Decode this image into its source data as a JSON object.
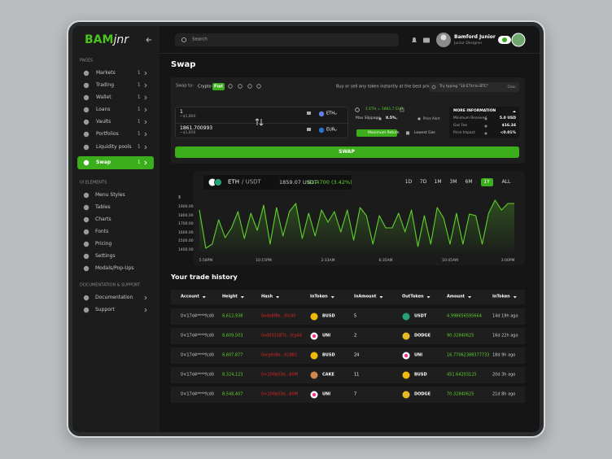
{
  "sidebar": {
    "logo_bold": "BAM",
    "logo_italic": "jnr",
    "sections": [
      {
        "title": "PAGES",
        "items": [
          {
            "label": "Markets",
            "count": 1
          },
          {
            "label": "Trading",
            "count": 1
          },
          {
            "label": "Wallet",
            "count": 1
          },
          {
            "label": "Loans",
            "count": 1
          },
          {
            "label": "Vaults",
            "count": 1
          },
          {
            "label": "Portfolios",
            "count": 1
          },
          {
            "label": "Liquidity pools",
            "count": 1
          },
          {
            "label": "Swap",
            "count": 1,
            "active": true
          }
        ]
      },
      {
        "title": "UI ELEMENTS",
        "items": [
          {
            "label": "Menu Styles"
          },
          {
            "label": "Tables"
          },
          {
            "label": "Charts"
          },
          {
            "label": "Fonts"
          },
          {
            "label": "Pricing"
          },
          {
            "label": "Settings"
          },
          {
            "label": "Modals/Pop-Ups"
          }
        ]
      },
      {
        "title": "DOCUMENTATION & SUPPORT",
        "items": [
          {
            "label": "Documentation"
          },
          {
            "label": "Support"
          }
        ]
      }
    ]
  },
  "topbar": {
    "search": "Search",
    "user_name": "Bamford Junior",
    "user_role": "Junior Designer"
  },
  "swap": {
    "title": "Swap",
    "swap_to": "Swap to:",
    "options": [
      {
        "label": "Crypto"
      },
      {
        "label": "Fiat",
        "active": true
      }
    ],
    "tagline": "Buy or sell any token instantly at the best price",
    "search_placeholder": "Try typing \"10 ETH to BTC\"",
    "clear": "Clear",
    "from": {
      "amount": "1",
      "usd": "~$1,860",
      "token": "ETH"
    },
    "to": {
      "amount": "1861.700993",
      "usd": "~$1,856",
      "token": "EUR"
    },
    "rate": "1 ETH = 1861.7 EUR",
    "max_slippage": "Max Slippage",
    "slippage": "0.5%",
    "price_alert": "Price Alert",
    "routes": [
      {
        "label": "Maximum Return",
        "active": true
      },
      {
        "label": "Lowest Gas"
      }
    ],
    "more_info": {
      "title": "MORE INFORMATION",
      "rows": [
        [
          "Minimum Received",
          "5.0 USD"
        ],
        [
          "Gas Fee",
          "$16.34"
        ],
        [
          "Price Impact",
          "<0.01%"
        ]
      ]
    },
    "button": "SWAP"
  },
  "chart_panel": {
    "pair_base": "ETH",
    "pair_quote": "/ USDT",
    "price": "1859.07 USDT",
    "change": "61.4700 (3.42%)",
    "ranges": [
      {
        "label": "1D"
      },
      {
        "label": "7D"
      },
      {
        "label": "1M"
      },
      {
        "label": "3M"
      },
      {
        "label": "6M"
      },
      {
        "label": "1Y",
        "active": true
      },
      {
        "label": "ALL"
      }
    ]
  },
  "chart_data": {
    "type": "line",
    "y_label": "$",
    "color": "#5fd12b",
    "categories": [
      null,
      "5:58PM",
      null,
      null,
      null,
      null,
      null,
      null,
      null,
      null,
      "10:15PM",
      null,
      null,
      null,
      null,
      null,
      null,
      null,
      null,
      null,
      "2:33AM",
      null,
      null,
      null,
      null,
      null,
      null,
      null,
      null,
      "6:35AM",
      null,
      null,
      null,
      null,
      null,
      null,
      null,
      null,
      null,
      "10:45AM",
      null,
      null,
      null,
      null,
      null,
      null,
      null,
      null,
      "3:00PM",
      null
    ],
    "values": [
      1876,
      1428,
      1475,
      1762,
      1552,
      1666,
      1857,
      1542,
      1838,
      1638,
      1933,
      1475,
      1905,
      1571,
      1857,
      1952,
      1542,
      1838,
      1571,
      1876,
      1733,
      1857,
      1618,
      1876,
      1523,
      1905,
      1809,
      1475,
      1809,
      1666,
      1666,
      1838,
      1618,
      1876,
      1447,
      1809,
      1475,
      1905,
      1781,
      1475,
      1838,
      1475,
      1828,
      1809,
      1475,
      1838,
      1990,
      1876,
      1952,
      1952
    ],
    "ylim": [
      1380,
      2000
    ],
    "yticks": [
      {
        "value": 1400,
        "label": "1400.00"
      },
      {
        "value": 1500,
        "label": "1500.00"
      },
      {
        "value": 1600,
        "label": "1600.00"
      },
      {
        "value": 1700,
        "label": "1700.00"
      },
      {
        "value": 1800,
        "label": "1800.00"
      },
      {
        "value": 1900,
        "label": "1900.00"
      }
    ]
  },
  "trade_history": {
    "title": "Your trade history",
    "columns": [
      "Account",
      "Height",
      "Hash",
      "InToken",
      "InAmount",
      "OutToken",
      "Amount",
      "InToken"
    ],
    "rows": [
      [
        "0×17d4****fcd0",
        "8,612,938",
        "0x4e8f8e...0fc40",
        "BUSD",
        5,
        "USDT",
        "4.998656595664",
        "14d 19h ago"
      ],
      [
        "0×17d4****fcd0",
        "8,609,503",
        "0xd032187c...fcg44",
        "UNI",
        2,
        "DODGE",
        "90.32840625",
        "16d 22h ago"
      ],
      [
        "0×17d4****fcd0",
        "8,607,877",
        "0xrg9c8e...01882",
        "BUSD",
        24,
        "UNI",
        "16.77062388377733",
        "18d 9h ago"
      ],
      [
        "0×17d4****fcd0",
        "8,324,123",
        "0×200e03d...80M",
        "CAKE",
        11,
        "BUSD",
        "451.64203125",
        "20d 3h ago"
      ],
      [
        "0×17d4****fcd0",
        "8,548,407",
        "0×200e03d...80M",
        "UNI",
        7,
        "DODGE",
        "70.32840625",
        "21d 8h ago"
      ]
    ]
  }
}
